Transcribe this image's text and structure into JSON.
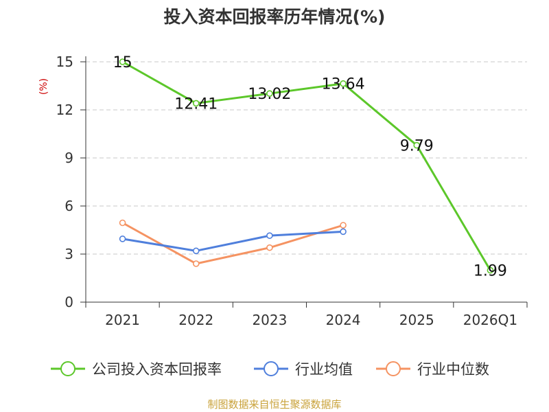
{
  "chart_data": {
    "type": "line",
    "title": "投入资本回报率历年情况(%)",
    "ylabel": "(%)",
    "xlabel": "",
    "categories": [
      "2021",
      "2022",
      "2023",
      "2024",
      "2025",
      "2026Q1"
    ],
    "ylim": [
      0,
      15
    ],
    "yticks": [
      0,
      3,
      6,
      9,
      12,
      15
    ],
    "grid": true,
    "legend_position": "bottom",
    "series": [
      {
        "name": "公司投入资本回报率",
        "values": [
          15,
          12.41,
          13.02,
          13.64,
          9.79,
          1.99
        ],
        "labels": [
          "15",
          "12.41",
          "13.02",
          "13.64",
          "9.79",
          "1.99"
        ],
        "color": "#5cc72a"
      },
      {
        "name": "行业均值",
        "values": [
          3.95,
          3.2,
          4.15,
          4.4,
          null,
          null
        ],
        "color": "#4f7fdc"
      },
      {
        "name": "行业中位数",
        "values": [
          4.95,
          2.4,
          3.4,
          4.8,
          null,
          null
        ],
        "color": "#f59362"
      }
    ]
  },
  "source": "制图数据来自恒生聚源数据库"
}
